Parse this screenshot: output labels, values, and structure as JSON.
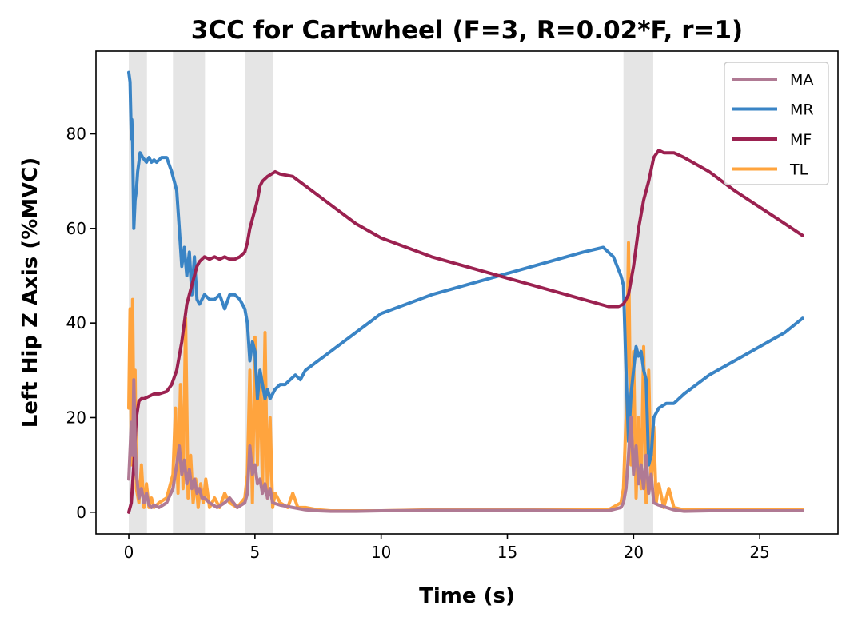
{
  "chart_data": {
    "type": "line",
    "title": "3CC for Cartwheel (F=3, R=0.02*F, r=1)",
    "xlabel": "Time (s)",
    "ylabel": "Left Hip Z Axis (%MVC)",
    "xlim": [
      -1.3,
      28.1
    ],
    "ylim": [
      -4.6,
      97.5
    ],
    "xticks": [
      0,
      5,
      10,
      15,
      20,
      25
    ],
    "yticks": [
      0,
      20,
      40,
      60,
      80
    ],
    "grid": false,
    "legend_position": "top-right",
    "shaded_regions": [
      [
        0.0,
        0.72
      ],
      [
        1.75,
        3.02
      ],
      [
        4.6,
        5.72
      ],
      [
        19.6,
        20.78
      ]
    ],
    "shade_color": "#e5e5e5",
    "series": [
      {
        "name": "MA",
        "color": "#b07a94",
        "x": [
          0.0,
          0.1,
          0.15,
          0.2,
          0.25,
          0.3,
          0.4,
          0.5,
          0.6,
          0.7,
          0.8,
          0.9,
          1.0,
          1.2,
          1.5,
          1.75,
          1.9,
          2.0,
          2.1,
          2.2,
          2.3,
          2.4,
          2.5,
          2.6,
          2.7,
          2.8,
          2.9,
          3.0,
          3.2,
          3.5,
          3.8,
          4.0,
          4.3,
          4.6,
          4.7,
          4.8,
          4.9,
          5.0,
          5.1,
          5.2,
          5.3,
          5.4,
          5.5,
          5.6,
          5.7,
          6.0,
          6.5,
          7.0,
          7.5,
          8.0,
          9.0,
          10.0,
          12.0,
          14.0,
          16.0,
          18.0,
          19.0,
          19.5,
          19.6,
          19.7,
          19.8,
          19.9,
          20.0,
          20.1,
          20.2,
          20.3,
          20.4,
          20.5,
          20.6,
          20.7,
          20.8,
          21.0,
          21.3,
          21.6,
          22.0,
          23.0,
          24.0,
          25.0,
          26.0,
          26.7
        ],
        "y": [
          7,
          19,
          12,
          28,
          15,
          8,
          3,
          5,
          2,
          4,
          1.5,
          1,
          1.5,
          1,
          2,
          5,
          10,
          14,
          8,
          11,
          6,
          9,
          5,
          7,
          4,
          5,
          3,
          3,
          2,
          1,
          2,
          3,
          1,
          2,
          4,
          14,
          8,
          10,
          6,
          7,
          4,
          6,
          3,
          5,
          2,
          1.5,
          1,
          0.5,
          0.3,
          0.2,
          0.2,
          0.3,
          0.4,
          0.4,
          0.4,
          0.3,
          0.3,
          1,
          2,
          5,
          12,
          20,
          8,
          14,
          6,
          10,
          5,
          12,
          4,
          8,
          2,
          1.5,
          1,
          0.5,
          0.2,
          0.3,
          0.3,
          0.3,
          0.3,
          0.3
        ]
      },
      {
        "name": "MR",
        "color": "#3a84c5",
        "x": [
          0.0,
          0.05,
          0.1,
          0.12,
          0.15,
          0.2,
          0.25,
          0.3,
          0.35,
          0.45,
          0.55,
          0.7,
          0.8,
          0.9,
          1.0,
          1.1,
          1.3,
          1.5,
          1.7,
          1.9,
          2.0,
          2.1,
          2.2,
          2.3,
          2.4,
          2.5,
          2.6,
          2.7,
          2.8,
          2.9,
          3.0,
          3.2,
          3.4,
          3.6,
          3.8,
          4.0,
          4.2,
          4.4,
          4.6,
          4.7,
          4.8,
          4.9,
          5.0,
          5.1,
          5.2,
          5.3,
          5.4,
          5.5,
          5.6,
          5.8,
          6.0,
          6.2,
          6.4,
          6.6,
          6.8,
          7.0,
          8.0,
          9.0,
          10.0,
          12.0,
          14.0,
          16.0,
          18.0,
          18.8,
          19.2,
          19.5,
          19.6,
          19.7,
          19.8,
          19.9,
          20.0,
          20.1,
          20.2,
          20.3,
          20.4,
          20.5,
          20.6,
          20.7,
          20.8,
          21.0,
          21.3,
          21.6,
          22.0,
          23.0,
          24.0,
          25.0,
          26.0,
          26.7
        ],
        "y": [
          93,
          91,
          79,
          83,
          78,
          60,
          66,
          68,
          72,
          76,
          75,
          74,
          75,
          74,
          74.5,
          74,
          75,
          75,
          72,
          68,
          60,
          52,
          56,
          50,
          55,
          46,
          54,
          45,
          44,
          45,
          46,
          45,
          45,
          46,
          43,
          46,
          46,
          45,
          43,
          40,
          32,
          36,
          34,
          24,
          30,
          27,
          24,
          26,
          24,
          26,
          27,
          27,
          28,
          29,
          28,
          30,
          34,
          38,
          42,
          46,
          49,
          52,
          55,
          56,
          54,
          50,
          48,
          30,
          15,
          25,
          30,
          35,
          33,
          34,
          30,
          28,
          10,
          12,
          20,
          22,
          23,
          23,
          25,
          29,
          32,
          35,
          38,
          41
        ]
      },
      {
        "name": "MF",
        "color": "#9b2150",
        "x": [
          0.0,
          0.1,
          0.2,
          0.3,
          0.4,
          0.5,
          0.6,
          0.8,
          1.0,
          1.2,
          1.5,
          1.7,
          1.9,
          2.1,
          2.3,
          2.5,
          2.6,
          2.7,
          2.8,
          3.0,
          3.2,
          3.4,
          3.6,
          3.8,
          4.0,
          4.2,
          4.4,
          4.6,
          4.7,
          4.8,
          4.9,
          5.0,
          5.1,
          5.2,
          5.3,
          5.5,
          5.8,
          6.0,
          6.5,
          7.0,
          8.0,
          9.0,
          10.0,
          12.0,
          14.0,
          16.0,
          18.0,
          19.0,
          19.4,
          19.6,
          19.8,
          20.0,
          20.2,
          20.4,
          20.6,
          20.8,
          21.0,
          21.2,
          21.4,
          21.6,
          22.0,
          23.0,
          24.0,
          25.0,
          26.0,
          26.7
        ],
        "y": [
          0,
          2,
          10,
          20,
          23.5,
          24,
          24,
          24.5,
          25,
          25,
          25.5,
          27,
          30,
          36,
          44,
          48,
          50,
          52,
          53,
          54,
          53.5,
          54,
          53.5,
          54,
          53.5,
          53.5,
          54,
          55,
          57,
          60,
          62,
          64,
          66,
          69,
          70,
          71,
          72,
          71.5,
          71,
          69,
          65,
          61,
          58,
          54,
          51,
          48,
          45,
          43.5,
          43.5,
          44,
          46,
          52,
          60,
          66,
          70,
          75,
          76.5,
          76,
          76,
          76,
          75,
          72,
          68,
          64.5,
          61,
          58.5
        ]
      },
      {
        "name": "TL",
        "color": "#ffa43e",
        "x": [
          0.0,
          0.05,
          0.1,
          0.15,
          0.2,
          0.25,
          0.3,
          0.4,
          0.5,
          0.6,
          0.7,
          0.8,
          0.9,
          1.0,
          1.2,
          1.5,
          1.75,
          1.85,
          1.95,
          2.05,
          2.15,
          2.25,
          2.35,
          2.45,
          2.55,
          2.65,
          2.75,
          2.85,
          2.95,
          3.05,
          3.2,
          3.4,
          3.6,
          3.8,
          4.0,
          4.3,
          4.6,
          4.7,
          4.8,
          4.9,
          5.0,
          5.1,
          5.2,
          5.3,
          5.4,
          5.5,
          5.6,
          5.7,
          5.8,
          6.0,
          6.3,
          6.5,
          6.7,
          7.0,
          7.5,
          8.0,
          9.0,
          10.0,
          12.0,
          14.0,
          16.0,
          18.0,
          19.0,
          19.5,
          19.6,
          19.7,
          19.8,
          19.9,
          20.0,
          20.1,
          20.2,
          20.3,
          20.4,
          20.5,
          20.6,
          20.7,
          20.8,
          20.9,
          21.0,
          21.2,
          21.4,
          21.6,
          22.0,
          23.0,
          24.0,
          25.0,
          26.0,
          26.7
        ],
        "y": [
          22,
          43,
          10,
          45,
          20,
          30,
          5,
          2,
          10,
          1,
          6,
          1,
          3,
          1,
          2,
          3,
          8,
          22,
          4,
          27,
          5,
          41,
          3,
          12,
          2,
          7,
          1,
          6,
          2,
          7,
          1,
          3,
          1,
          4,
          2,
          1,
          3,
          8,
          30,
          2,
          37,
          10,
          30,
          5,
          38,
          3,
          20,
          1,
          4,
          2,
          1,
          4,
          1,
          1,
          0.5,
          0.3,
          0.3,
          0.3,
          0.5,
          0.5,
          0.5,
          0.5,
          0.5,
          2,
          5,
          20,
          57,
          10,
          34,
          3,
          20,
          5,
          35,
          2,
          30,
          5,
          18,
          2,
          6,
          1,
          5,
          1,
          0.5,
          0.5,
          0.5,
          0.5,
          0.5,
          0.5
        ]
      }
    ]
  }
}
